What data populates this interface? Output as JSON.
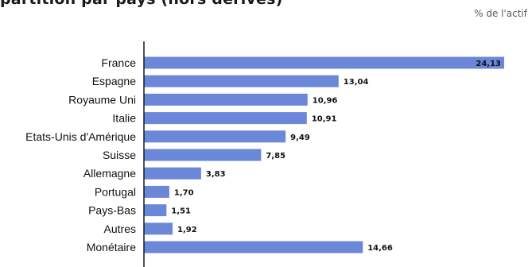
{
  "header": {
    "title": "partition par pays (hors dérivés)",
    "unit_label": "% de l'actif"
  },
  "colors": {
    "bar": "#6b87d8",
    "axis": "#1a1a1a"
  },
  "chart_data": {
    "type": "bar",
    "orientation": "horizontal",
    "title": "partition par pays (hors dérivés)",
    "xlabel": "",
    "ylabel": "",
    "unit": "% de l'actif",
    "xlim": [
      0,
      24.13
    ],
    "grid": false,
    "legend": "none",
    "categories": [
      "France",
      "Espagne",
      "Royaume Uni",
      "Italie",
      "Etats-Unis d'Amérique",
      "Suisse",
      "Allemagne",
      "Portugal",
      "Pays-Bas",
      "Autres",
      "Monétaire"
    ],
    "values": [
      24.13,
      13.04,
      10.96,
      10.91,
      9.49,
      7.85,
      3.83,
      1.7,
      1.51,
      1.92,
      14.66
    ],
    "value_labels": [
      "24,13",
      "13,04",
      "10,96",
      "10,91",
      "9,49",
      "7,85",
      "3,83",
      "1,70",
      "1,51",
      "1,92",
      "14,66"
    ]
  }
}
